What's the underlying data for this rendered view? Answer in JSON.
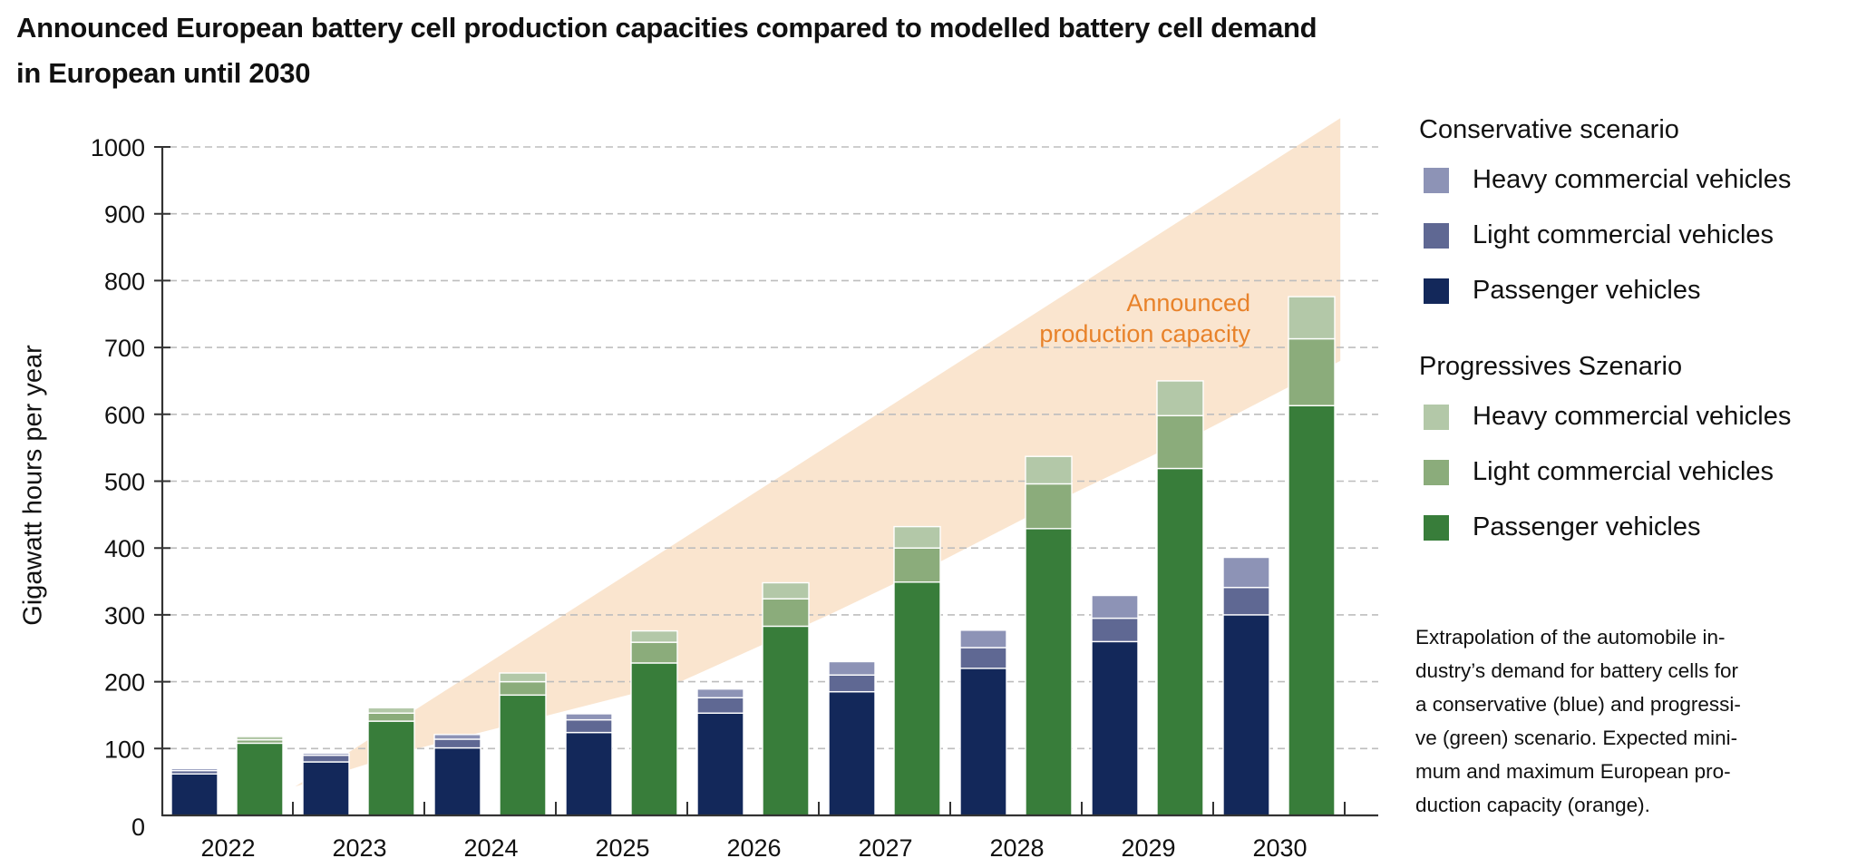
{
  "title": {
    "lines": [
      "Announced European battery cell production capacities compared to modelled battery cell demand",
      "in European until 2030"
    ]
  },
  "legend": {
    "groups": [
      {
        "title": "Conservative scenario",
        "items": [
          {
            "label": "Heavy commercial vehicles",
            "color": "#8d93b6"
          },
          {
            "label": "Light commercial vehicles",
            "color": "#5f6893"
          },
          {
            "label": "Passenger vehicles",
            "color": "#13285a"
          }
        ]
      },
      {
        "title": "Progressives Szenario",
        "items": [
          {
            "label": "Heavy commercial vehicles",
            "color": "#b3c8a8"
          },
          {
            "label": "Light commercial vehicles",
            "color": "#8bac7b"
          },
          {
            "label": "Passenger vehicles",
            "color": "#387d3a"
          }
        ]
      }
    ]
  },
  "note": {
    "lines": [
      "Extrapolation of the automobile in-",
      "dustry’s demand for battery cells for",
      "a conservative (blue) and progressi-",
      "ve (green) scenario. Expected mini-",
      "mum and maximum European pro-",
      "duction capacity (orange)."
    ]
  },
  "chart_data": {
    "type": "bar",
    "stacked": true,
    "grouped": true,
    "title": "Announced European battery cell production capacities compared to modelled battery cell demand in European until 2030",
    "xlabel": "",
    "ylabel": "Gigawatt hours per year",
    "ylim": [
      0,
      1000
    ],
    "yticks": [
      0,
      100,
      200,
      300,
      400,
      500,
      600,
      700,
      800,
      900,
      1000
    ],
    "grid": true,
    "legend_position": "right",
    "categories": [
      "2022",
      "2023",
      "2024",
      "2025",
      "2026",
      "2027",
      "2028",
      "2029",
      "2030"
    ],
    "groups": [
      {
        "name": "Conservative scenario",
        "series": [
          {
            "name": "Passenger vehicles",
            "color": "#13285a",
            "values": [
              62,
              80,
              101,
              124,
              153,
              185,
              220,
              260,
              300
            ]
          },
          {
            "name": "Light commercial vehicles",
            "color": "#5f6893",
            "values": [
              5,
              10,
              13,
              19,
              23,
              25,
              31,
              35,
              41
            ]
          },
          {
            "name": "Heavy commercial vehicles",
            "color": "#8d93b6",
            "values": [
              3,
              3,
              7,
              9,
              13,
              20,
              26,
              34,
              45
            ]
          }
        ]
      },
      {
        "name": "Progressives Szenario",
        "series": [
          {
            "name": "Passenger vehicles",
            "color": "#387d3a",
            "values": [
              108,
              141,
              180,
              228,
              283,
              349,
              429,
              519,
              613
            ]
          },
          {
            "name": "Light commercial vehicles",
            "color": "#8bac7b",
            "values": [
              5,
              12,
              20,
              31,
              41,
              51,
              67,
              79,
              100
            ]
          },
          {
            "name": "Heavy commercial vehicles",
            "color": "#b3c8a8",
            "values": [
              5,
              8,
              13,
              17,
              24,
              32,
              41,
              52,
              63
            ]
          }
        ]
      }
    ],
    "band": {
      "name": "Announced production capacity",
      "label_lines": [
        "Announced",
        "production capacity"
      ],
      "color": "#fae5cf",
      "label_color": "#e8822a",
      "upper": [
        [
          2022.51,
          43
        ],
        [
          2030.46,
          1043
        ]
      ],
      "lower": [
        [
          2022.51,
          43
        ],
        [
          2023.42,
          99
        ],
        [
          2025.44,
          200
        ],
        [
          2026.57,
          300
        ],
        [
          2027.42,
          380
        ],
        [
          2028.41,
          480
        ],
        [
          2029.42,
          575
        ],
        [
          2030.05,
          639
        ],
        [
          2030.46,
          680
        ]
      ]
    }
  }
}
